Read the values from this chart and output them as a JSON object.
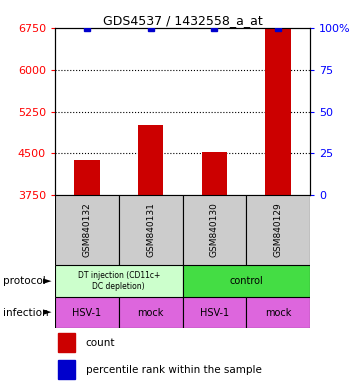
{
  "title": "GDS4537 / 1432558_a_at",
  "samples": [
    "GSM840132",
    "GSM840131",
    "GSM840130",
    "GSM840129"
  ],
  "count_values": [
    4380,
    5000,
    4530,
    6750
  ],
  "percentile_values": [
    100,
    100,
    100,
    100
  ],
  "ylim_left": [
    3750,
    6750
  ],
  "yticks_left": [
    3750,
    4500,
    5250,
    6000,
    6750
  ],
  "yticks_right": [
    0,
    25,
    50,
    75,
    100
  ],
  "ylim_right": [
    0,
    100
  ],
  "bar_color": "#cc0000",
  "percentile_color": "#0000cc",
  "infection_labels": [
    "HSV-1",
    "mock",
    "HSV-1",
    "mock"
  ],
  "infection_color": "#dd66dd",
  "sample_bg_color": "#cccccc",
  "proto_color_left": "#ccffcc",
  "proto_color_right": "#44dd44",
  "proto_label_left": "DT injection (CD11c+\nDC depletion)",
  "proto_label_right": "control"
}
